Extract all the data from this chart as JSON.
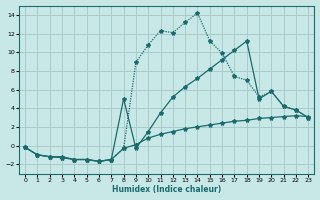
{
  "xlabel": "Humidex (Indice chaleur)",
  "bg_color": "#c8e8e8",
  "grid_color": "#a8cccc",
  "line_color": "#1a6b6b",
  "x": [
    0,
    1,
    2,
    3,
    4,
    5,
    6,
    7,
    8,
    9,
    10,
    11,
    12,
    13,
    14,
    15,
    16,
    17,
    18,
    19,
    20,
    21,
    22,
    23
  ],
  "y_main": [
    -0.2,
    -1.0,
    -1.2,
    -1.3,
    -1.5,
    -1.5,
    -1.7,
    -1.5,
    -0.3,
    8.9,
    10.8,
    12.3,
    12.1,
    13.2,
    14.2,
    11.2,
    9.9,
    7.4,
    7.0,
    5.2,
    5.8,
    4.2,
    3.8,
    3.0
  ],
  "y_mid": [
    -0.2,
    -1.0,
    -1.2,
    -1.3,
    -1.5,
    -1.5,
    -1.7,
    -1.5,
    5.0,
    -0.3,
    1.5,
    3.5,
    5.2,
    6.3,
    7.2,
    8.2,
    9.2,
    10.2,
    11.2,
    5.0,
    5.8,
    4.2,
    3.8,
    3.0
  ],
  "y_flat": [
    -0.2,
    -1.0,
    -1.2,
    -1.2,
    -1.5,
    -1.5,
    -1.7,
    -1.5,
    -0.3,
    0.1,
    0.8,
    1.2,
    1.5,
    1.8,
    2.0,
    2.2,
    2.4,
    2.6,
    2.7,
    2.9,
    3.0,
    3.1,
    3.2,
    3.1
  ],
  "ylim": [
    -3,
    15
  ],
  "yticks": [
    -2,
    0,
    2,
    4,
    6,
    8,
    10,
    12,
    14
  ],
  "xlim": [
    -0.5,
    23.5
  ]
}
